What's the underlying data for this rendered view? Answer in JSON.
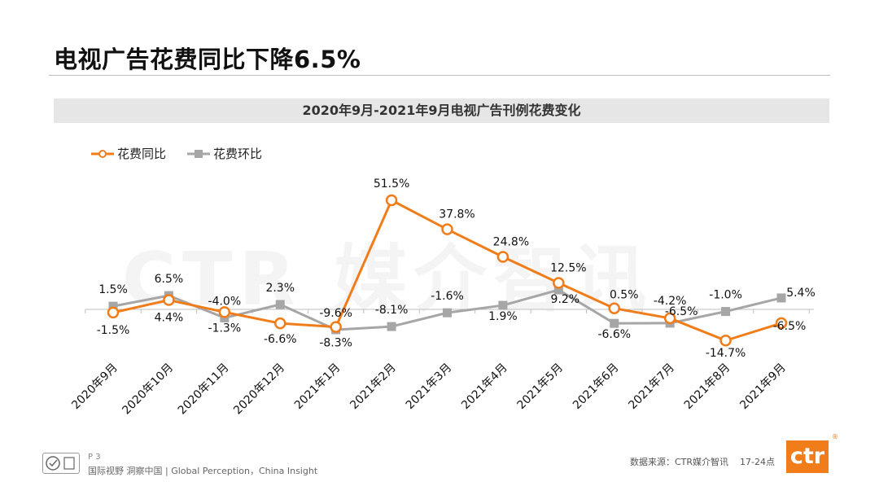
{
  "page": {
    "title": "电视广告花费同比下降6.5%",
    "watermark": "CTR 媒介智讯"
  },
  "footer": {
    "page_number": "P 3",
    "tagline": "国际视野  洞察中国 | Global Perception，China Insight",
    "source": "数据来源：CTR媒介智讯",
    "time_range": "17-24点",
    "brand_logo": "ctr"
  },
  "chart_data": {
    "type": "line",
    "title": "2020年9月-2021年9月电视广告刊例花费变化",
    "categories": [
      "2020年9月",
      "2020年10月",
      "2020年11月",
      "2020年12月",
      "2021年1月",
      "2021年2月",
      "2021年3月",
      "2021年4月",
      "2021年5月",
      "2021年6月",
      "2021年7月",
      "2021年8月",
      "2021年9月"
    ],
    "series": [
      {
        "name": "花费同比",
        "color": "#f07d1a",
        "marker": "circle",
        "values": [
          -1.5,
          4.4,
          -1.3,
          -6.6,
          -8.3,
          51.5,
          37.8,
          24.8,
          12.5,
          0.5,
          -4.2,
          -14.7,
          -6.5
        ],
        "labels": [
          "-1.5%",
          "4.4%",
          "-1.3%",
          "-6.6%",
          "-8.3%",
          "51.5%",
          "37.8%",
          "24.8%",
          "12.5%",
          "0.5%",
          "-4.2%",
          "-14.7%",
          "-6.5%"
        ]
      },
      {
        "name": "花费环比",
        "color": "#a6a6a6",
        "marker": "square",
        "values": [
          1.5,
          6.5,
          -4.0,
          2.3,
          -9.6,
          -8.1,
          -1.6,
          1.9,
          9.2,
          -6.6,
          -6.5,
          -1.0,
          5.4
        ],
        "labels": [
          "1.5%",
          "6.5%",
          "-4.0%",
          "2.3%",
          "-9.6%",
          "-8.1%",
          "-1.6%",
          "1.9%",
          "9.2%",
          "-6.6%",
          "-6.5%",
          "-1.0%",
          "5.4%"
        ]
      }
    ],
    "ylim": [
      -20,
      60
    ],
    "xlabel": "",
    "ylabel": "",
    "grid": false,
    "legend": "top-left"
  }
}
